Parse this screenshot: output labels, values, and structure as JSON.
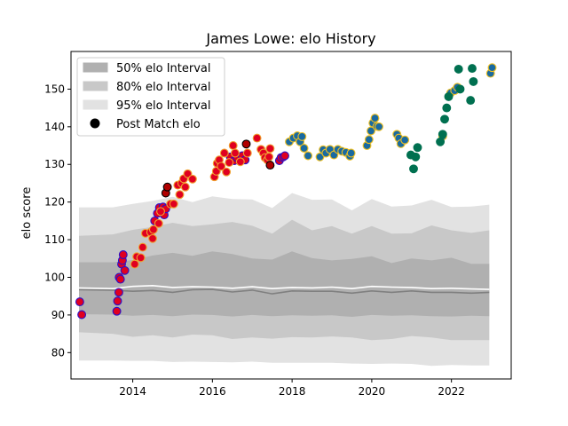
{
  "chart_data": {
    "type": "scatter",
    "title": "James Lowe: elo History",
    "xlabel": "",
    "ylabel": "elo score",
    "xlim": [
      2012.45,
      2023.5
    ],
    "ylim": [
      73,
      160
    ],
    "x_ticks": [
      2014,
      2016,
      2018,
      2020,
      2022
    ],
    "y_ticks": [
      80,
      90,
      100,
      110,
      120,
      130,
      140,
      150
    ],
    "grid": false,
    "legend_position": "top-left",
    "legend": [
      {
        "label": "50% elo Interval",
        "kind": "band",
        "color": "#b0b0b0"
      },
      {
        "label": "80% elo Interval",
        "kind": "band",
        "color": "#c8c8c8"
      },
      {
        "label": "95% elo Interval",
        "kind": "band",
        "color": "#e2e2e2"
      },
      {
        "label": "Post Match elo",
        "kind": "marker",
        "color": "#000000"
      }
    ],
    "intervals": {
      "x": [
        2012.65,
        2013.5,
        2014.0,
        2014.5,
        2015.0,
        2015.5,
        2016.0,
        2016.5,
        2017.0,
        2017.5,
        2018.0,
        2018.5,
        2019.0,
        2019.5,
        2020.0,
        2020.5,
        2021.0,
        2021.5,
        2022.0,
        2022.5,
        2022.95
      ],
      "median": [
        96.7,
        96.6,
        96.3,
        96.5,
        96.0,
        96.7,
        96.8,
        96.1,
        96.6,
        95.6,
        96.4,
        96.3,
        96.3,
        95.8,
        96.4,
        96.0,
        96.4,
        96.0,
        96.0,
        95.8,
        96.0
      ],
      "light_line": [
        97.2,
        97.0,
        97.6,
        97.8,
        97.3,
        97.5,
        97.4,
        97.1,
        97.5,
        97.0,
        97.3,
        97.2,
        97.4,
        97.0,
        97.6,
        97.4,
        97.3,
        97.0,
        97.1,
        96.9,
        96.8
      ],
      "band50": {
        "lower": [
          90.2,
          90.1,
          89.8,
          90.0,
          89.7,
          90.1,
          90.0,
          89.6,
          90.0,
          89.7,
          89.9,
          89.8,
          89.9,
          89.5,
          90.0,
          89.8,
          89.9,
          89.7,
          89.6,
          89.8,
          89.7
        ],
        "upper": [
          104.0,
          104.0,
          104.6,
          105.8,
          106.5,
          105.7,
          106.9,
          106.2,
          105.0,
          104.7,
          106.9,
          105.1,
          104.5,
          104.9,
          105.6,
          103.8,
          105.0,
          104.5,
          105.2,
          103.6,
          103.6
        ]
      },
      "band80": {
        "lower": [
          85.4,
          85.0,
          84.2,
          84.6,
          84.0,
          84.8,
          84.6,
          83.6,
          84.0,
          83.7,
          84.1,
          84.0,
          84.3,
          84.0,
          83.3,
          83.6,
          84.4,
          84.0,
          83.3,
          83.3,
          83.3
        ],
        "upper": [
          111.0,
          111.4,
          112.6,
          113.4,
          114.5,
          113.6,
          114.1,
          114.7,
          113.7,
          111.6,
          115.3,
          112.5,
          113.6,
          111.6,
          113.6,
          111.6,
          111.7,
          113.8,
          112.5,
          111.8,
          112.5
        ]
      },
      "band95": {
        "lower": [
          77.9,
          77.9,
          77.8,
          77.8,
          77.5,
          77.6,
          77.5,
          77.4,
          77.6,
          77.3,
          77.3,
          77.3,
          77.3,
          77.1,
          77.0,
          77.1,
          77.0,
          76.5,
          76.7,
          76.6,
          76.6
        ],
        "upper": [
          118.6,
          118.6,
          119.5,
          120.3,
          121.4,
          120.0,
          121.5,
          120.8,
          120.7,
          118.4,
          122.4,
          120.6,
          120.7,
          117.8,
          120.8,
          118.8,
          119.1,
          120.6,
          118.7,
          118.8,
          119.3
        ]
      }
    },
    "series": [
      {
        "fill": "#e00020",
        "edge": "#2a10c8",
        "points": [
          [
            2012.67,
            93.5
          ],
          [
            2012.72,
            90.1
          ],
          [
            2013.6,
            91
          ],
          [
            2013.62,
            93.7
          ],
          [
            2013.65,
            96
          ],
          [
            2013.66,
            100
          ],
          [
            2013.69,
            99.5
          ],
          [
            2013.72,
            103.5
          ],
          [
            2013.74,
            104.5
          ],
          [
            2013.76,
            106
          ],
          [
            2013.8,
            101.8
          ],
          [
            2014.55,
            115
          ],
          [
            2014.62,
            117
          ],
          [
            2014.67,
            118.5
          ],
          [
            2014.72,
            117.6
          ],
          [
            2014.76,
            118.7
          ],
          [
            2014.79,
            116.6
          ],
          [
            2014.83,
            118.2
          ],
          [
            2016.45,
            132
          ],
          [
            2016.55,
            131
          ],
          [
            2016.62,
            131.8
          ],
          [
            2016.75,
            132.3
          ],
          [
            2016.82,
            131.2
          ],
          [
            2017.68,
            131
          ],
          [
            2017.72,
            131.8
          ],
          [
            2017.78,
            132
          ],
          [
            2017.82,
            132.3
          ]
        ]
      },
      {
        "fill": "#e00020",
        "edge": "#f0a030",
        "points": [
          [
            2014.05,
            103.5
          ],
          [
            2014.1,
            105.5
          ],
          [
            2014.2,
            105.2
          ],
          [
            2014.25,
            108
          ],
          [
            2014.32,
            111.7
          ],
          [
            2014.45,
            112
          ],
          [
            2014.5,
            110.3
          ],
          [
            2014.52,
            112.7
          ],
          [
            2014.65,
            114.3
          ],
          [
            2014.7,
            117.5
          ],
          [
            2014.95,
            119.5
          ],
          [
            2015.03,
            119.5
          ],
          [
            2015.13,
            124.5
          ],
          [
            2015.18,
            122
          ],
          [
            2015.23,
            125
          ],
          [
            2015.28,
            126.2
          ],
          [
            2015.32,
            124
          ],
          [
            2015.38,
            127.5
          ],
          [
            2015.5,
            126.1
          ],
          [
            2016.05,
            126.7
          ],
          [
            2016.1,
            128.2
          ],
          [
            2016.12,
            130.3
          ],
          [
            2016.17,
            131.2
          ],
          [
            2016.22,
            129.5
          ],
          [
            2016.3,
            133
          ],
          [
            2016.35,
            128
          ],
          [
            2016.42,
            130.5
          ],
          [
            2016.52,
            135
          ],
          [
            2016.57,
            133
          ],
          [
            2016.7,
            130.7
          ],
          [
            2016.88,
            133
          ],
          [
            2017.12,
            137
          ],
          [
            2017.22,
            134
          ],
          [
            2017.28,
            133
          ],
          [
            2017.32,
            131.8
          ],
          [
            2017.38,
            131.2
          ],
          [
            2017.42,
            132
          ],
          [
            2017.45,
            134.2
          ]
        ]
      },
      {
        "fill": "#b00000",
        "edge": "#000000",
        "points": [
          [
            2014.83,
            122.4
          ],
          [
            2014.87,
            124
          ],
          [
            2016.85,
            135.4
          ],
          [
            2017.45,
            129.8
          ]
        ]
      },
      {
        "fill": "#1a6aa0",
        "edge": "#f0c020",
        "points": [
          [
            2017.93,
            136
          ],
          [
            2018.03,
            137
          ],
          [
            2018.13,
            137.6
          ],
          [
            2018.2,
            136
          ],
          [
            2018.25,
            137.4
          ],
          [
            2018.3,
            134.3
          ],
          [
            2018.4,
            132.3
          ],
          [
            2018.7,
            132
          ],
          [
            2018.78,
            133.9
          ],
          [
            2018.85,
            133
          ],
          [
            2018.95,
            134
          ],
          [
            2019.05,
            132.5
          ],
          [
            2019.15,
            134
          ],
          [
            2019.25,
            133.5
          ],
          [
            2019.35,
            133.2
          ],
          [
            2019.45,
            132.2
          ],
          [
            2019.48,
            133
          ],
          [
            2019.88,
            135
          ],
          [
            2019.93,
            136.6
          ],
          [
            2019.98,
            138.9
          ],
          [
            2020.03,
            141
          ],
          [
            2020.08,
            142.3
          ],
          [
            2020.13,
            140.1
          ],
          [
            2020.18,
            140
          ],
          [
            2020.63,
            138
          ],
          [
            2020.68,
            137
          ],
          [
            2020.73,
            135.5
          ],
          [
            2020.83,
            136.5
          ],
          [
            2021.78,
            137.5
          ],
          [
            2021.98,
            149
          ],
          [
            2022.08,
            149.6
          ],
          [
            2022.15,
            150.5
          ],
          [
            2022.98,
            154.2
          ],
          [
            2023.02,
            155.7
          ]
        ]
      },
      {
        "fill": "#007050",
        "edge": "#007050",
        "points": [
          [
            2020.98,
            132.5
          ],
          [
            2021.05,
            128.8
          ],
          [
            2021.1,
            132
          ],
          [
            2021.15,
            134.5
          ],
          [
            2021.72,
            136
          ],
          [
            2021.78,
            138
          ],
          [
            2021.83,
            142
          ],
          [
            2021.88,
            145
          ],
          [
            2021.93,
            148
          ],
          [
            2022.18,
            155.3
          ],
          [
            2022.22,
            150
          ],
          [
            2022.48,
            147
          ],
          [
            2022.52,
            155.5
          ],
          [
            2022.55,
            152
          ]
        ]
      }
    ]
  }
}
